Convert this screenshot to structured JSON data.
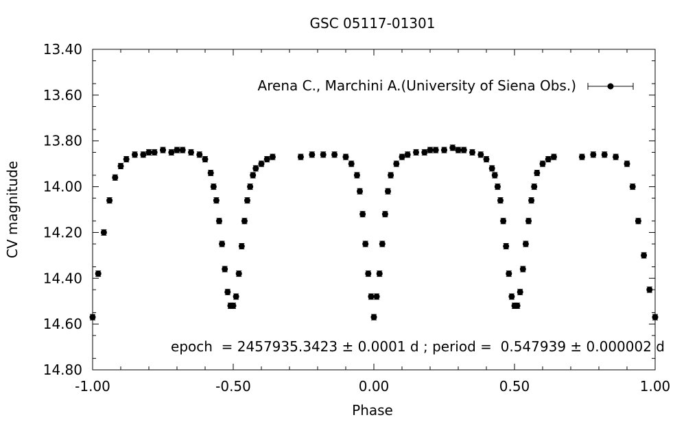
{
  "chart_data": {
    "type": "scatter",
    "title": "GSC 05117-01301",
    "xlabel": "Phase",
    "ylabel": "CV magnitude",
    "xlim": [
      -1.0,
      1.0
    ],
    "ylim": [
      13.4,
      14.8
    ],
    "y_inverted": true,
    "grid": false,
    "error_bars": true,
    "legend_position": "top-right",
    "x_ticks": [
      "-1.00",
      "-0.50",
      "0.00",
      "0.50",
      "1.00"
    ],
    "y_ticks": [
      "13.40",
      "13.60",
      "13.80",
      "14.00",
      "14.20",
      "14.40",
      "14.60",
      "14.80"
    ],
    "annotation": "epoch  = 2457935.3423 ± 0.0001 d ; period =  0.547939 ± 0.000002 d",
    "series": [
      {
        "name": "Arena C., Marchini A.(University of Siena Obs.)",
        "color": "#000000",
        "x": [
          -1.0,
          -0.98,
          -0.96,
          -0.94,
          -0.92,
          -0.9,
          -0.88,
          -0.85,
          -0.82,
          -0.8,
          -0.78,
          -0.75,
          -0.72,
          -0.7,
          -0.68,
          -0.65,
          -0.62,
          -0.6,
          -0.58,
          -0.57,
          -0.56,
          -0.55,
          -0.54,
          -0.53,
          -0.52,
          -0.51,
          -0.5,
          -0.49,
          -0.48,
          -0.47,
          -0.46,
          -0.45,
          -0.44,
          -0.43,
          -0.42,
          -0.4,
          -0.38,
          -0.36,
          -0.26,
          -0.22,
          -0.18,
          -0.14,
          -0.1,
          -0.08,
          -0.06,
          -0.05,
          -0.04,
          -0.03,
          -0.02,
          -0.01,
          0.0,
          0.01,
          0.02,
          0.03,
          0.04,
          0.05,
          0.06,
          0.08,
          0.1,
          0.12,
          0.15,
          0.18,
          0.2,
          0.22,
          0.25,
          0.28,
          0.3,
          0.32,
          0.35,
          0.38,
          0.4,
          0.42,
          0.43,
          0.44,
          0.45,
          0.46,
          0.47,
          0.48,
          0.49,
          0.5,
          0.51,
          0.52,
          0.53,
          0.54,
          0.55,
          0.56,
          0.57,
          0.58,
          0.6,
          0.62,
          0.64,
          0.74,
          0.78,
          0.82,
          0.86,
          0.9,
          0.92,
          0.94,
          0.96,
          0.98,
          1.0
        ],
        "y": [
          14.57,
          14.38,
          14.2,
          14.06,
          13.96,
          13.91,
          13.88,
          13.86,
          13.86,
          13.85,
          13.85,
          13.84,
          13.85,
          13.84,
          13.84,
          13.85,
          13.86,
          13.88,
          13.94,
          14.0,
          14.06,
          14.15,
          14.25,
          14.36,
          14.46,
          14.52,
          14.52,
          14.48,
          14.38,
          14.26,
          14.15,
          14.06,
          14.0,
          13.95,
          13.92,
          13.9,
          13.88,
          13.87,
          13.87,
          13.86,
          13.86,
          13.86,
          13.87,
          13.9,
          13.95,
          14.02,
          14.12,
          14.25,
          14.38,
          14.48,
          14.57,
          14.48,
          14.38,
          14.25,
          14.12,
          14.02,
          13.95,
          13.9,
          13.87,
          13.86,
          13.85,
          13.85,
          13.84,
          13.84,
          13.84,
          13.83,
          13.84,
          13.84,
          13.85,
          13.86,
          13.88,
          13.92,
          13.95,
          14.0,
          14.06,
          14.15,
          14.26,
          14.38,
          14.48,
          14.52,
          14.52,
          14.46,
          14.36,
          14.25,
          14.15,
          14.06,
          14.0,
          13.94,
          13.9,
          13.88,
          13.87,
          13.87,
          13.86,
          13.86,
          13.87,
          13.9,
          14.0,
          14.15,
          14.3,
          14.45,
          14.57
        ]
      }
    ]
  }
}
